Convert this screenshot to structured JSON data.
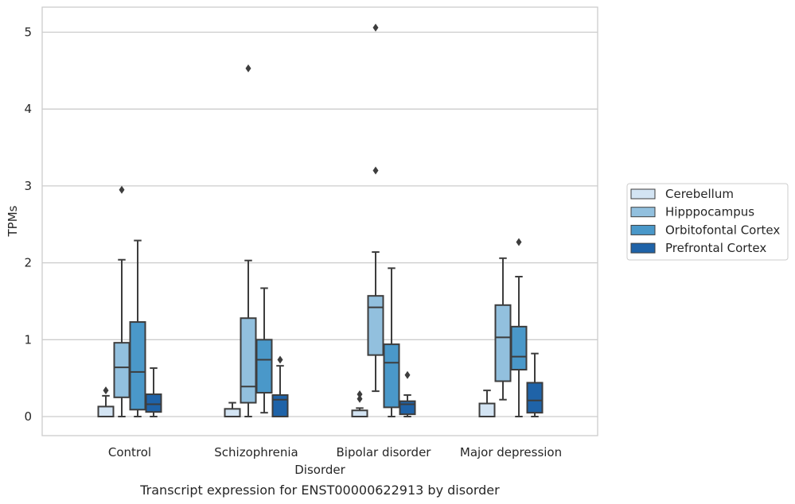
{
  "chart_data": {
    "type": "box",
    "xlabel": "Disorder",
    "ylabel": "TPMs",
    "caption": "Transcript expression for ENST00000622913 by disorder",
    "ylim": [
      -0.25,
      5.32
    ],
    "yticks": [
      0,
      1,
      2,
      3,
      4,
      5
    ],
    "grid": "horizontal",
    "legend_position": "right",
    "categories": [
      "Control",
      "Schizophrenia",
      "Bipolar disorder",
      "Major depression"
    ],
    "series": [
      {
        "name": "Cerebellum",
        "color": "#d3e4f3",
        "boxes": [
          {
            "whisker_low": 0.0,
            "q1": 0.0,
            "median": 0.0,
            "q3": 0.13,
            "whisker_high": 0.27,
            "outliers": [
              0.34
            ]
          },
          {
            "whisker_low": 0.0,
            "q1": 0.0,
            "median": 0.0,
            "q3": 0.1,
            "whisker_high": 0.18,
            "outliers": []
          },
          {
            "whisker_low": 0.0,
            "q1": 0.0,
            "median": 0.0,
            "q3": 0.08,
            "whisker_high": 0.11,
            "outliers": [
              0.23,
              0.29
            ]
          },
          {
            "whisker_low": 0.0,
            "q1": 0.0,
            "median": 0.0,
            "q3": 0.17,
            "whisker_high": 0.34,
            "outliers": []
          }
        ]
      },
      {
        "name": "Hipppocampus",
        "color": "#92c0de",
        "boxes": [
          {
            "whisker_low": 0.0,
            "q1": 0.25,
            "median": 0.64,
            "q3": 0.96,
            "whisker_high": 2.04,
            "outliers": [
              2.95
            ]
          },
          {
            "whisker_low": 0.0,
            "q1": 0.18,
            "median": 0.39,
            "q3": 1.28,
            "whisker_high": 2.03,
            "outliers": [
              4.53
            ]
          },
          {
            "whisker_low": 0.33,
            "q1": 0.8,
            "median": 1.42,
            "q3": 1.57,
            "whisker_high": 2.14,
            "outliers": [
              3.2,
              5.06
            ]
          },
          {
            "whisker_low": 0.22,
            "q1": 0.46,
            "median": 1.03,
            "q3": 1.45,
            "whisker_high": 2.06,
            "outliers": []
          }
        ]
      },
      {
        "name": "Orbitofontal Cortex",
        "color": "#4a98c9",
        "boxes": [
          {
            "whisker_low": 0.0,
            "q1": 0.09,
            "median": 0.58,
            "q3": 1.23,
            "whisker_high": 2.29,
            "outliers": []
          },
          {
            "whisker_low": 0.05,
            "q1": 0.31,
            "median": 0.74,
            "q3": 1.0,
            "whisker_high": 1.67,
            "outliers": []
          },
          {
            "whisker_low": 0.0,
            "q1": 0.12,
            "median": 0.7,
            "q3": 0.94,
            "whisker_high": 1.93,
            "outliers": []
          },
          {
            "whisker_low": 0.0,
            "q1": 0.61,
            "median": 0.78,
            "q3": 1.17,
            "whisker_high": 1.82,
            "outliers": [
              2.27
            ]
          }
        ]
      },
      {
        "name": "Prefrontal Cortex",
        "color": "#1f63a8",
        "boxes": [
          {
            "whisker_low": 0.0,
            "q1": 0.06,
            "median": 0.16,
            "q3": 0.29,
            "whisker_high": 0.63,
            "outliers": []
          },
          {
            "whisker_low": 0.0,
            "q1": 0.0,
            "median": 0.22,
            "q3": 0.28,
            "whisker_high": 0.66,
            "outliers": [
              0.74
            ]
          },
          {
            "whisker_low": 0.0,
            "q1": 0.03,
            "median": 0.16,
            "q3": 0.2,
            "whisker_high": 0.28,
            "outliers": [
              0.54
            ]
          },
          {
            "whisker_low": 0.0,
            "q1": 0.05,
            "median": 0.21,
            "q3": 0.44,
            "whisker_high": 0.82,
            "outliers": []
          }
        ]
      }
    ]
  }
}
